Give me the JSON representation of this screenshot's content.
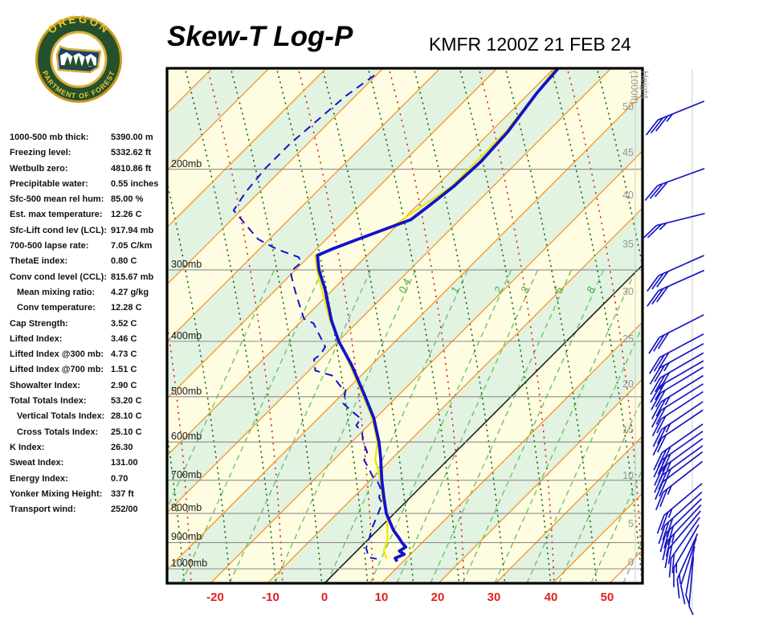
{
  "title": "Skew-T Log-P",
  "station": "KMFR 1200Z 21 FEB 24",
  "logo": {
    "top": "OREGON",
    "bottom": "DEPARTMENT OF FORESTRY"
  },
  "indices": [
    {
      "label": "1000-500 mb thick:",
      "value": "5390.00 m",
      "indent": false
    },
    {
      "label": "Freezing level:",
      "value": "5332.62 ft",
      "indent": false
    },
    {
      "label": "Wetbulb zero:",
      "value": "4810.86 ft",
      "indent": false
    },
    {
      "label": "Precipitable water:",
      "value": "0.55 inches",
      "indent": false
    },
    {
      "label": "Sfc-500 mean rel hum:",
      "value": "85.00 %",
      "indent": false
    },
    {
      "label": "Est. max temperature:",
      "value": "12.26 C",
      "indent": false
    },
    {
      "label": "Sfc-Lift cond lev (LCL):",
      "value": "917.94 mb",
      "indent": false
    },
    {
      "label": "700-500 lapse rate:",
      "value": "7.05 C/km",
      "indent": false
    },
    {
      "label": "ThetaE index:",
      "value": "0.80 C",
      "indent": false
    },
    {
      "label": "Conv cond level (CCL):",
      "value": "815.67 mb",
      "indent": false
    },
    {
      "label": "Mean mixing ratio:",
      "value": "4.27 g/kg",
      "indent": true
    },
    {
      "label": "Conv temperature:",
      "value": "12.28 C",
      "indent": true
    },
    {
      "label": "Cap Strength:",
      "value": "3.52 C",
      "indent": false
    },
    {
      "label": "Lifted Index:",
      "value": "3.46 C",
      "indent": false
    },
    {
      "label": "Lifted Index @300 mb:",
      "value": "4.73 C",
      "indent": false
    },
    {
      "label": "Lifted Index @700 mb:",
      "value": "1.51 C",
      "indent": false
    },
    {
      "label": "Showalter Index:",
      "value": "2.90 C",
      "indent": false
    },
    {
      "label": "Total Totals Index:",
      "value": "53.20 C",
      "indent": false
    },
    {
      "label": "Vertical Totals Index:",
      "value": "28.10 C",
      "indent": true
    },
    {
      "label": "Cross Totals Index:",
      "value": "25.10 C",
      "indent": true
    },
    {
      "label": "K Index:",
      "value": "26.30",
      "indent": false
    },
    {
      "label": "Sweat Index:",
      "value": "131.00",
      "indent": false
    },
    {
      "label": "Energy Index:",
      "value": "0.70",
      "indent": false
    },
    {
      "label": "Yonker Mixing Height:",
      "value": "337 ft",
      "indent": false
    },
    {
      "label": "Transport wind:",
      "value": "252/00",
      "indent": false
    }
  ],
  "chart_data": {
    "type": "skewt-log-p",
    "title": "Skew-T Log-P",
    "station_id": "KMFR",
    "valid": "1200Z 21 FEB 24",
    "temp_axis": {
      "unit": "C",
      "ticks": [
        "-20",
        "-10",
        "0",
        "10",
        "20",
        "30",
        "40",
        "50"
      ],
      "tick_values": [
        -20,
        -10,
        0,
        10,
        20,
        30,
        40,
        50
      ]
    },
    "pressure_axis": {
      "unit": "mb",
      "labels": [
        "200mb",
        "300mb",
        "400mb",
        "500mb",
        "600mb",
        "700mb",
        "800mb",
        "900mb",
        "1000mb"
      ],
      "values": [
        200,
        300,
        400,
        500,
        600,
        700,
        800,
        900,
        1000
      ]
    },
    "height_axis": {
      "title": "Height",
      "subtitle": "(1000ft)",
      "ticks": [
        "50",
        "45",
        "40",
        "35",
        "30",
        "25",
        "20",
        "15",
        "10",
        "5",
        "0"
      ],
      "tick_values": [
        50,
        45,
        40,
        35,
        30,
        25,
        20,
        15,
        10,
        5,
        0
      ]
    },
    "mixing_ratio_labels": [
      "0.4",
      "1",
      "2",
      "3",
      "5",
      "8"
    ],
    "series": {
      "temperature_p_T": [
        [
          133,
          -49.3
        ],
        [
          147,
          -48.7
        ],
        [
          172,
          -47.0
        ],
        [
          194,
          -46.5
        ],
        [
          214,
          -46.9
        ],
        [
          233,
          -47.9
        ],
        [
          245,
          -48.6
        ],
        [
          250,
          -50.1
        ],
        [
          265,
          -54.4
        ],
        [
          276,
          -57.3
        ],
        [
          283,
          -58.7
        ],
        [
          300,
          -55.9
        ],
        [
          324,
          -51.5
        ],
        [
          351,
          -47.3
        ],
        [
          368,
          -44.8
        ],
        [
          400,
          -39.9
        ],
        [
          440,
          -33.5
        ],
        [
          494,
          -26.3
        ],
        [
          544,
          -20.4
        ],
        [
          600,
          -15.2
        ],
        [
          640,
          -12.1
        ],
        [
          700,
          -8.0
        ],
        [
          752,
          -4.5
        ],
        [
          800,
          -1.4
        ],
        [
          856,
          2.8
        ],
        [
          884,
          5.2
        ],
        [
          898,
          6.3
        ],
        [
          916,
          7.9
        ],
        [
          931,
          7.5
        ],
        [
          943,
          8.9
        ],
        [
          958,
          8.0
        ],
        [
          971,
          8.9
        ]
      ],
      "dewpoint_p_Td": [
        [
          137,
          -80.3
        ],
        [
          149,
          -81.7
        ],
        [
          164,
          -82.4
        ],
        [
          181,
          -83.1
        ],
        [
          199,
          -83.1
        ],
        [
          219,
          -82.4
        ],
        [
          236,
          -81.3
        ],
        [
          265,
          -72.0
        ],
        [
          276,
          -66.9
        ],
        [
          285,
          -61.7
        ],
        [
          291,
          -60.3
        ],
        [
          302,
          -60.6
        ],
        [
          319,
          -57.7
        ],
        [
          337,
          -54.6
        ],
        [
          365,
          -50.0
        ],
        [
          372,
          -47.5
        ],
        [
          409,
          -41.3
        ],
        [
          422,
          -40.8
        ],
        [
          430,
          -41.1
        ],
        [
          450,
          -38.9
        ],
        [
          459,
          -35.1
        ],
        [
          469,
          -33.4
        ],
        [
          482,
          -31.3
        ],
        [
          485,
          -30.3
        ],
        [
          514,
          -28.2
        ],
        [
          531,
          -25.2
        ],
        [
          546,
          -22.5
        ],
        [
          561,
          -22.1
        ],
        [
          579,
          -19.7
        ],
        [
          600,
          -18.0
        ],
        [
          625,
          -15.5
        ],
        [
          646,
          -14.6
        ],
        [
          660,
          -13.1
        ],
        [
          688,
          -10.4
        ],
        [
          704,
          -8.5
        ],
        [
          722,
          -6.9
        ],
        [
          751,
          -5.4
        ],
        [
          768,
          -3.9
        ],
        [
          801,
          -2.8
        ],
        [
          846,
          -1.4
        ],
        [
          902,
          0.6
        ],
        [
          919,
          1.1
        ],
        [
          955,
          3.2
        ],
        [
          961,
          4.9
        ]
      ],
      "wetbulb_p_Tw": [
        [
          133,
          -49.7
        ],
        [
          172,
          -47.4
        ],
        [
          214,
          -47.3
        ],
        [
          250,
          -50.5
        ],
        [
          283,
          -59.1
        ],
        [
          300,
          -56.3
        ],
        [
          368,
          -45.1
        ],
        [
          440,
          -33.8
        ],
        [
          494,
          -26.6
        ],
        [
          544,
          -20.7
        ],
        [
          600,
          -15.5
        ],
        [
          645,
          -12.7
        ],
        [
          700,
          -8.2
        ],
        [
          752,
          -4.8
        ],
        [
          810,
          -0.7
        ],
        [
          889,
          3.4
        ],
        [
          928,
          4.6
        ],
        [
          961,
          6.6
        ]
      ]
    },
    "wind_barbs_p_dir_spd": [
      [
        155,
        248,
        35
      ],
      [
        203,
        250,
        30
      ],
      [
        242,
        256,
        25
      ],
      [
        289,
        246,
        30
      ],
      [
        307,
        246,
        30
      ],
      [
        368,
        243,
        30
      ],
      [
        398,
        242,
        30
      ],
      [
        414,
        241,
        25
      ],
      [
        430,
        240,
        30
      ],
      [
        444,
        240,
        20
      ],
      [
        456,
        239,
        20
      ],
      [
        472,
        238,
        25
      ],
      [
        488,
        238,
        20
      ],
      [
        504,
        237,
        20
      ],
      [
        525,
        236,
        25
      ],
      [
        543,
        236,
        20
      ],
      [
        575,
        235,
        30
      ],
      [
        592,
        235,
        30
      ],
      [
        610,
        234,
        25
      ],
      [
        628,
        234,
        25
      ],
      [
        644,
        233,
        20
      ],
      [
        670,
        232,
        25
      ],
      [
        733,
        230,
        25
      ],
      [
        760,
        228,
        30
      ],
      [
        782,
        226,
        30
      ],
      [
        803,
        223,
        25
      ],
      [
        824,
        220,
        20
      ],
      [
        848,
        215,
        20
      ],
      [
        876,
        210,
        15
      ],
      [
        910,
        204,
        15
      ],
      [
        928,
        198,
        10
      ],
      [
        961,
        190,
        5
      ],
      [
        1002,
        185,
        5
      ]
    ],
    "colors": {
      "temperature": "#1212CC",
      "dewpoint": "#1212CC",
      "wetbulb": "#F2E500",
      "isotherm": "#F59222",
      "zero_isotherm": "#111111",
      "dry_adiabat": "#1B691B",
      "moist_adiabat": "#D42A2A",
      "mixing_ratio": "#6CC46C",
      "band_yellow": "#FFFDE1",
      "band_green": "#E2F3E2",
      "pressure_line": "#8C8C8C",
      "tick_red": "#E02020",
      "height_gray": "#969696",
      "barb_blue": "#1717C3"
    },
    "layout_hints": {
      "x_skew_deg": 45,
      "y_scale": "log-pressure",
      "grid": "on"
    }
  }
}
